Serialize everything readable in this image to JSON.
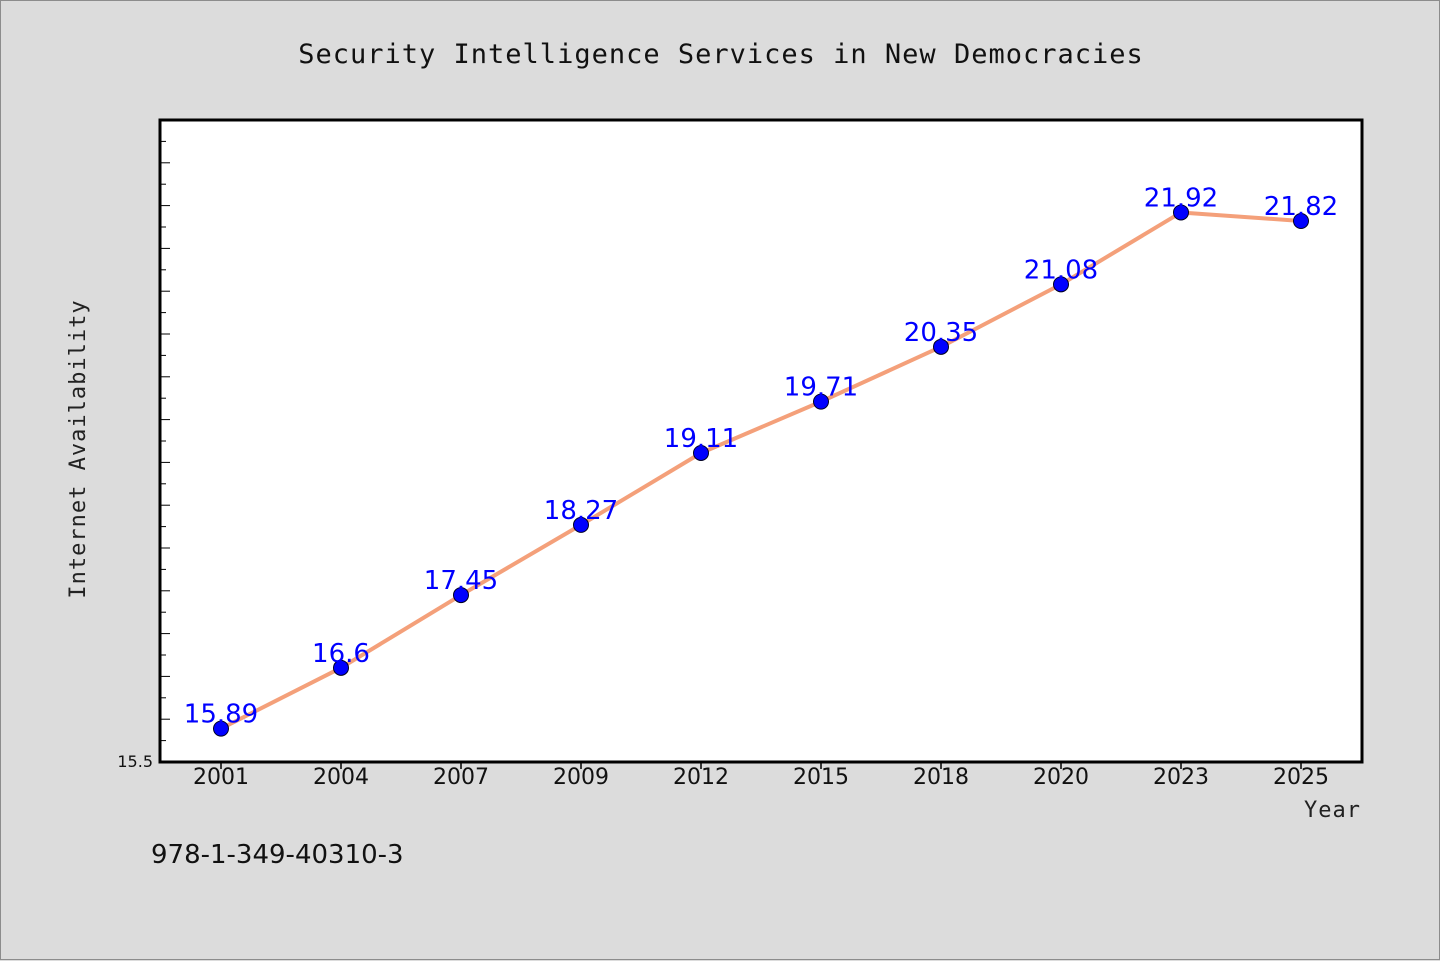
{
  "chart_data": {
    "type": "line",
    "title": "Security Intelligence Services in New Democracies",
    "xlabel": "Year",
    "ylabel": "Internet Availability",
    "categories": [
      "2001",
      "2004",
      "2007",
      "2009",
      "2012",
      "2015",
      "2018",
      "2020",
      "2023",
      "2025"
    ],
    "series": [
      {
        "values": [
          15.89,
          16.6,
          17.45,
          18.27,
          19.11,
          19.71,
          20.35,
          21.08,
          21.92,
          21.82
        ],
        "data_labels": [
          "15.89",
          "16.6",
          "17.45",
          "18.27",
          "19.11",
          "19.71",
          "20.35",
          "21.08",
          "21.92",
          "21.82"
        ],
        "line_color": "#f4a07a",
        "marker_color": "#0000ff"
      }
    ],
    "ylim": [
      15.5,
      23.0
    ],
    "y_tick_labels": [
      "15.5"
    ],
    "grid": false,
    "legend": "none"
  },
  "footer_text": "978-1-349-40310-3"
}
